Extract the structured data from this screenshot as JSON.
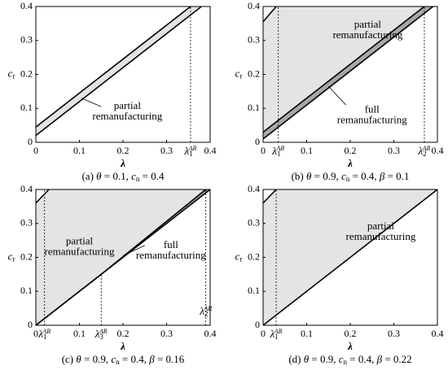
{
  "chart_data": [
    {
      "type": "line",
      "xlabel": "λ",
      "ylabel": {
        "text": "c",
        "sub": "r"
      },
      "xlim": [
        0,
        0.4
      ],
      "ylim": [
        0,
        0.4
      ],
      "xticks": [
        0,
        0.1,
        0.2,
        0.3,
        0.4
      ],
      "yticks": [
        0,
        0.1,
        0.2,
        0.3,
        0.4
      ],
      "series": [
        {
          "color": "#000000",
          "x": [
            0,
            0.355
          ],
          "y": [
            0.045,
            0.4
          ]
        },
        {
          "color": "#000000",
          "x": [
            0,
            0.38
          ],
          "y": [
            0.02,
            0.4
          ]
        }
      ],
      "regions": [
        {
          "color": "#e4e4e4",
          "x": [
            0,
            0.355,
            0.38,
            0
          ],
          "y": [
            0.045,
            0.4,
            0.4,
            0.02
          ]
        }
      ],
      "markers": [
        {
          "x": 0.355,
          "y": 0.4,
          "label": "λ",
          "sub": "1",
          "sup": "AR"
        }
      ],
      "annotations": [
        [
          "partial",
          "remanufacturing"
        ]
      ],
      "caption": [
        {
          "text": "(a) ",
          "style": "normal"
        },
        {
          "text": "θ",
          "style": "italic"
        },
        {
          "text": " = 0.1, ",
          "style": "normal"
        },
        {
          "text": "c",
          "style": "italic"
        },
        {
          "text": "n",
          "style": "sub"
        },
        {
          "text": " = 0.4",
          "style": "normal"
        }
      ]
    },
    {
      "type": "line",
      "xlabel": "λ",
      "ylabel": {
        "text": "c",
        "sub": "r"
      },
      "xlim": [
        0,
        0.4
      ],
      "ylim": [
        0,
        0.4
      ],
      "xticks": [
        0,
        0.1,
        0.2,
        0.3,
        0.4
      ],
      "yticks": [
        0,
        0.1,
        0.2,
        0.3,
        0.4
      ],
      "series": [
        {
          "color": "#000000",
          "x": [
            0,
            0.03
          ],
          "y": [
            0.355,
            0.4
          ]
        },
        {
          "color": "#000000",
          "x": [
            0,
            0.37
          ],
          "y": [
            0.03,
            0.4
          ]
        },
        {
          "color": "#000000",
          "x": [
            0,
            0.39
          ],
          "y": [
            0.01,
            0.4
          ]
        }
      ],
      "regions": [
        {
          "color": "#e4e4e4",
          "x": [
            0,
            0.03,
            0.37,
            0
          ],
          "y": [
            0.355,
            0.4,
            0.4,
            0.03
          ]
        },
        {
          "color": "#a8a8a8",
          "x": [
            0,
            0.37,
            0.39,
            0
          ],
          "y": [
            0.03,
            0.4,
            0.4,
            0.01
          ]
        }
      ],
      "markers": [
        {
          "x": 0.035,
          "y": 0.4,
          "label": "λ",
          "sub": "1",
          "sup": "AR"
        },
        {
          "x": 0.37,
          "y": 0.4,
          "label": "λ",
          "sub": "2",
          "sup": "AR"
        }
      ],
      "annotations": [
        [
          "partial",
          "remanufacturing"
        ],
        [
          "full",
          "remanufacturing"
        ]
      ],
      "caption": [
        {
          "text": "(b) ",
          "style": "normal"
        },
        {
          "text": "θ",
          "style": "italic"
        },
        {
          "text": " = 0.9, ",
          "style": "normal"
        },
        {
          "text": "c",
          "style": "italic"
        },
        {
          "text": "n",
          "style": "sub"
        },
        {
          "text": " = 0.4, ",
          "style": "normal"
        },
        {
          "text": "β",
          "style": "italic"
        },
        {
          "text": " = 0.1",
          "style": "normal"
        }
      ]
    },
    {
      "type": "line",
      "xlabel": "λ",
      "ylabel": {
        "text": "c",
        "sub": "r"
      },
      "xlim": [
        0,
        0.4
      ],
      "ylim": [
        0,
        0.4
      ],
      "xticks": [
        0,
        0.1,
        0.2,
        0.3,
        0.4
      ],
      "yticks": [
        0,
        0.1,
        0.2,
        0.3,
        0.4
      ],
      "series": [
        {
          "color": "#000000",
          "x": [
            0,
            0.03
          ],
          "y": [
            0.36,
            0.4
          ]
        },
        {
          "color": "#000000",
          "x": [
            0,
            0.4
          ],
          "y": [
            0,
            0.4
          ]
        },
        {
          "color": "#000000",
          "x": [
            0,
            0.15,
            0.39
          ],
          "y": [
            0,
            0.15,
            0.4
          ]
        }
      ],
      "regions": [
        {
          "color": "#e4e4e4",
          "x": [
            0,
            0.03,
            0.39,
            0.15,
            0
          ],
          "y": [
            0.36,
            0.4,
            0.4,
            0.15,
            0
          ]
        },
        {
          "color": "#a8a8a8",
          "x": [
            0.15,
            0.39,
            0.4
          ],
          "y": [
            0.15,
            0.4,
            0.4
          ]
        }
      ],
      "markers": [
        {
          "x": 0.02,
          "y": 0.4,
          "label": "λ",
          "sub": "1",
          "sup": "AR"
        },
        {
          "x": 0.15,
          "y": 0.15,
          "label": "λ",
          "sub": "3",
          "sup": "AR"
        },
        {
          "x": 0.39,
          "y": 0.4,
          "label": "λ",
          "sub": "2",
          "sup": "AR"
        }
      ],
      "annotations": [
        [
          "partial",
          "remanufacturing"
        ],
        [
          "full",
          "remanufacturing"
        ]
      ],
      "caption": [
        {
          "text": "(c) ",
          "style": "normal"
        },
        {
          "text": "θ",
          "style": "italic"
        },
        {
          "text": " = 0.9, ",
          "style": "normal"
        },
        {
          "text": "c",
          "style": "italic"
        },
        {
          "text": "n",
          "style": "sub"
        },
        {
          "text": " = 0.4, ",
          "style": "normal"
        },
        {
          "text": "β",
          "style": "italic"
        },
        {
          "text": " = 0.16",
          "style": "normal"
        }
      ]
    },
    {
      "type": "line",
      "xlabel": "λ",
      "ylabel": {
        "text": "c",
        "sub": "r"
      },
      "xlim": [
        0,
        0.4
      ],
      "ylim": [
        0,
        0.4
      ],
      "xticks": [
        0,
        0.1,
        0.2,
        0.3,
        0.4
      ],
      "yticks": [
        0,
        0.1,
        0.2,
        0.3,
        0.4
      ],
      "series": [
        {
          "color": "#000000",
          "x": [
            0,
            0.03
          ],
          "y": [
            0.36,
            0.4
          ]
        },
        {
          "color": "#000000",
          "x": [
            0,
            0.4
          ],
          "y": [
            0,
            0.4
          ]
        }
      ],
      "regions": [
        {
          "color": "#e4e4e4",
          "x": [
            0,
            0.03,
            0.4,
            0
          ],
          "y": [
            0.36,
            0.4,
            0.4,
            0
          ]
        }
      ],
      "markers": [
        {
          "x": 0.03,
          "y": 0.4,
          "label": "λ",
          "sub": "1",
          "sup": "AR"
        }
      ],
      "annotations": [
        [
          "partial",
          "remanufacturing"
        ]
      ],
      "caption": [
        {
          "text": "(d) ",
          "style": "normal"
        },
        {
          "text": "θ",
          "style": "italic"
        },
        {
          "text": " = 0.9, ",
          "style": "normal"
        },
        {
          "text": "c",
          "style": "italic"
        },
        {
          "text": "n",
          "style": "sub"
        },
        {
          "text": " = 0.4, ",
          "style": "normal"
        },
        {
          "text": "β",
          "style": "italic"
        },
        {
          "text": " = 0.22",
          "style": "normal"
        }
      ]
    }
  ]
}
